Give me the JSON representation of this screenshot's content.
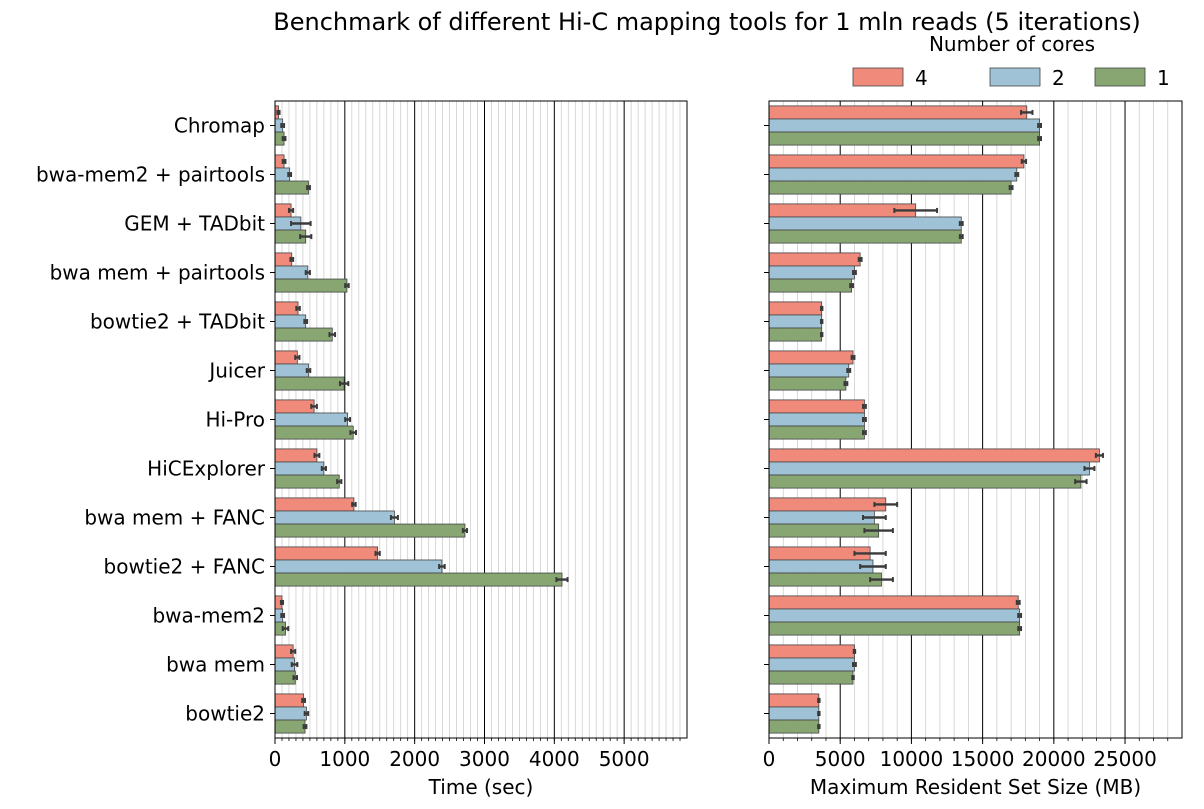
{
  "title": "Benchmark of different Hi-C mapping tools for 1 mln reads (5 iterations)",
  "legend": {
    "title": "Number of cores",
    "placement": "top-right",
    "entries": [
      {
        "label": "4",
        "color": "#f08a7a"
      },
      {
        "label": "2",
        "color": "#9fc2d6"
      },
      {
        "label": "1",
        "color": "#88a672"
      }
    ]
  },
  "colors": {
    "cores_4": "#f08a7a",
    "cores_2": "#9fc2d6",
    "cores_1": "#88a672",
    "errorbar": "#3a3a3a"
  },
  "chart_data": [
    {
      "type": "bar",
      "orientation": "horizontal",
      "categories": [
        "Chromap",
        "bwa-mem2 + pairtools",
        "GEM + TADbit",
        "bwa mem + pairtools",
        "bowtie2 + TADbit",
        "Juicer",
        "Hi-Pro",
        "HiCExplorer",
        "bwa mem + FANC",
        "bowtie2 + FANC",
        "bwa-mem2",
        "bwa mem",
        "bowtie2"
      ],
      "xlabel": "Time (sec)",
      "ylabel": "",
      "xlim": [
        0,
        5900
      ],
      "xticks": [
        "0",
        "1000",
        "2000",
        "3000",
        "4000",
        "5000"
      ],
      "grid": "vertical major and minor",
      "series": [
        {
          "name": "4",
          "values": [
            50,
            130,
            230,
            240,
            330,
            320,
            560,
            600,
            1130,
            1470,
            100,
            260,
            410
          ],
          "err": [
            15,
            20,
            30,
            20,
            25,
            30,
            40,
            35,
            25,
            30,
            15,
            30,
            20
          ]
        },
        {
          "name": "2",
          "values": [
            110,
            210,
            370,
            470,
            440,
            480,
            1040,
            700,
            1710,
            2390,
            110,
            280,
            450
          ],
          "err": [
            20,
            20,
            140,
            30,
            20,
            25,
            35,
            30,
            50,
            40,
            20,
            40,
            25
          ]
        },
        {
          "name": "1",
          "values": [
            130,
            480,
            440,
            1030,
            820,
            990,
            1120,
            920,
            2720,
            4110,
            150,
            290,
            430
          ],
          "err": [
            20,
            20,
            80,
            25,
            40,
            60,
            40,
            30,
            30,
            80,
            40,
            25,
            20
          ]
        }
      ]
    },
    {
      "type": "bar",
      "orientation": "horizontal",
      "categories": [
        "Chromap",
        "bwa-mem2 + pairtools",
        "GEM + TADbit",
        "bwa mem + pairtools",
        "bowtie2 + TADbit",
        "Juicer",
        "Hi-Pro",
        "HiCExplorer",
        "bwa mem + FANC",
        "bowtie2 + FANC",
        "bwa-mem2",
        "bwa mem",
        "bowtie2"
      ],
      "xlabel": "Maximum Resident Set Size (MB)",
      "ylabel": "",
      "xlim": [
        0,
        29000
      ],
      "xticks": [
        "0",
        "5000",
        "10000",
        "15000",
        "20000",
        "25000"
      ],
      "grid": "vertical major and minor",
      "series": [
        {
          "name": "4",
          "values": [
            18100,
            17900,
            10300,
            6400,
            3700,
            5900,
            6700,
            23200,
            8200,
            7100,
            17500,
            6000,
            3500
          ],
          "err": [
            400,
            150,
            1500,
            100,
            50,
            100,
            100,
            250,
            800,
            1100,
            100,
            50,
            50
          ]
        },
        {
          "name": "2",
          "values": [
            19000,
            17400,
            13500,
            6000,
            3700,
            5600,
            6700,
            22500,
            7400,
            7300,
            17600,
            6000,
            3500
          ],
          "err": [
            100,
            100,
            100,
            100,
            50,
            100,
            100,
            350,
            800,
            900,
            100,
            100,
            50
          ]
        },
        {
          "name": "1",
          "values": [
            19000,
            17000,
            13500,
            5800,
            3700,
            5400,
            6700,
            21900,
            7700,
            7900,
            17600,
            5900,
            3500
          ],
          "err": [
            100,
            100,
            100,
            100,
            50,
            100,
            100,
            400,
            1000,
            800,
            100,
            50,
            50
          ]
        }
      ]
    }
  ]
}
